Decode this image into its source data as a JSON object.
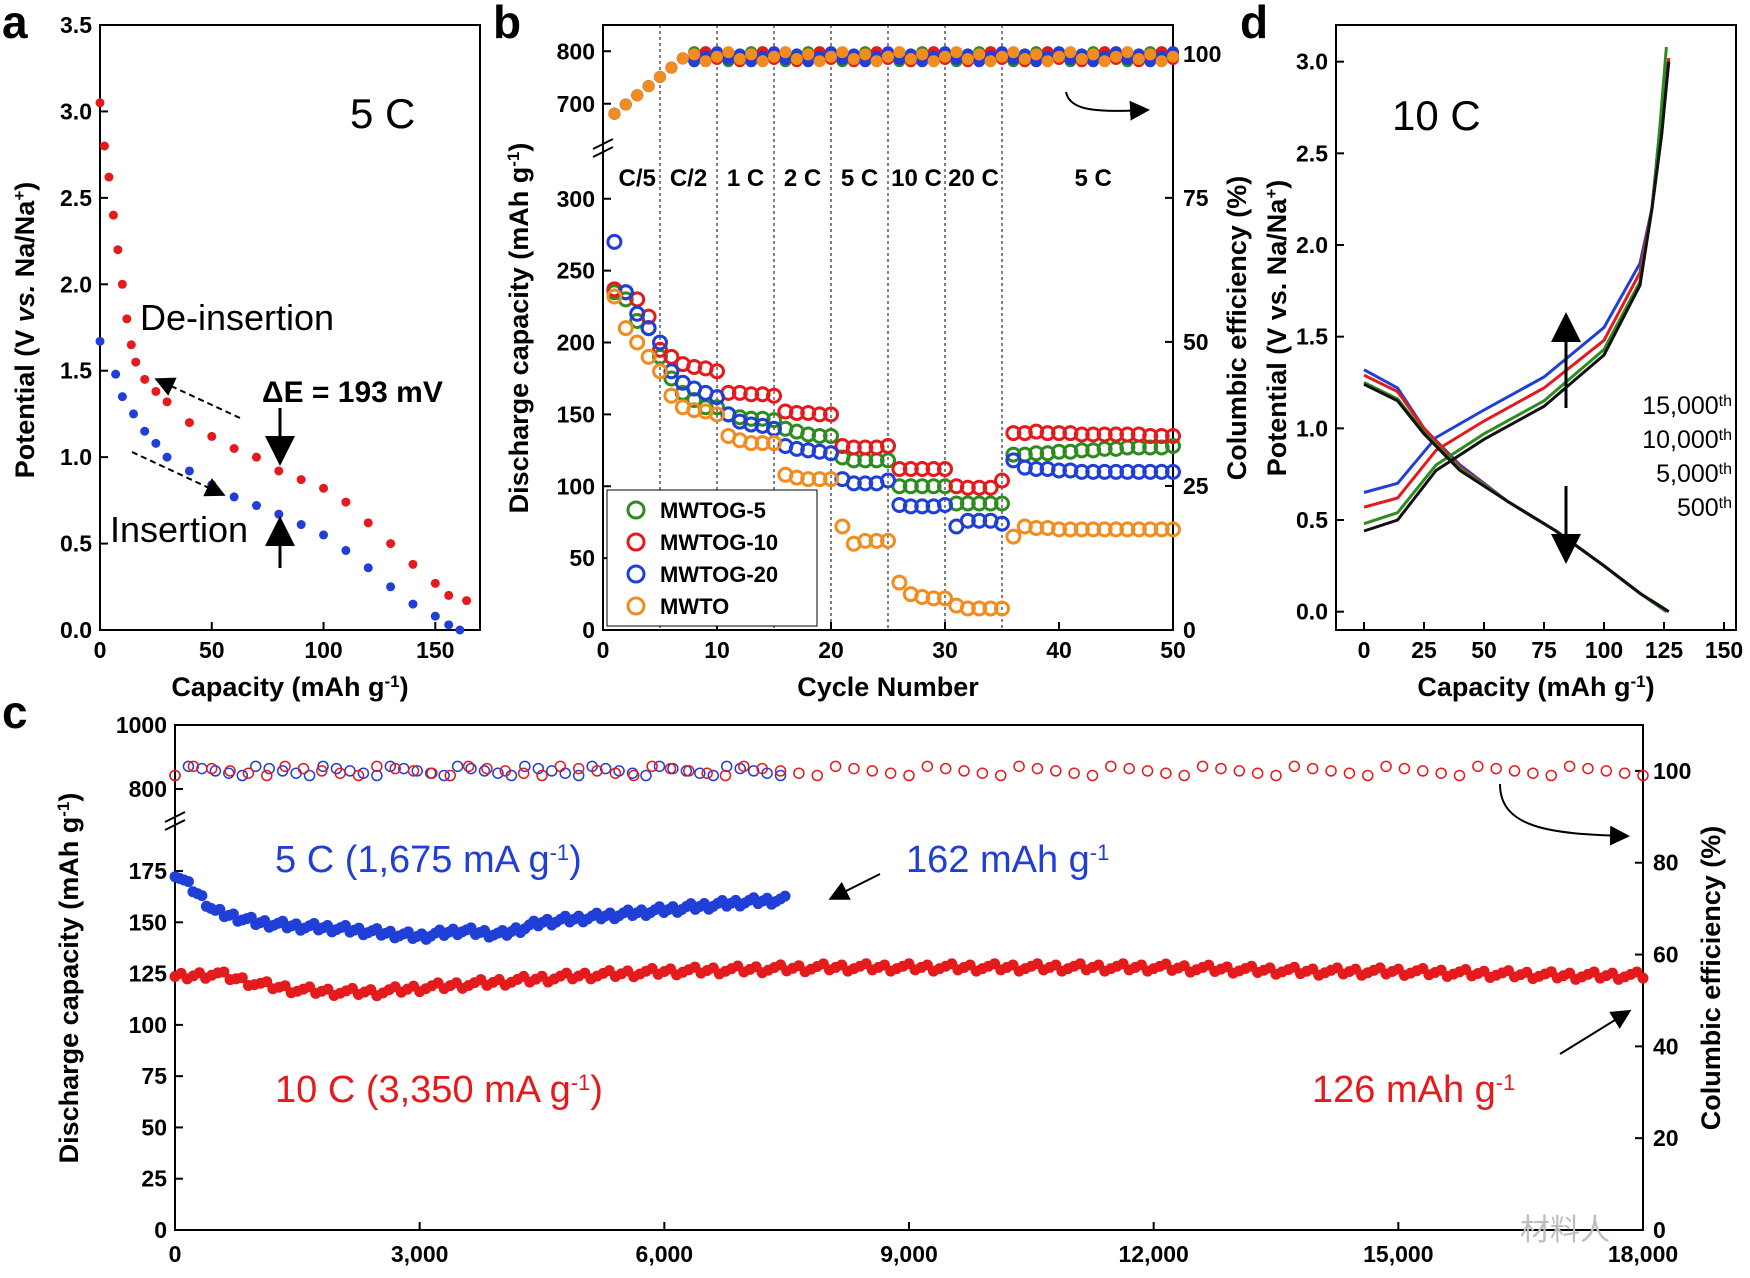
{
  "watermark": "材料人",
  "chart_data": [
    {
      "id": "a",
      "panel": "a",
      "type": "scatter",
      "xlabel": "Capacity (mAh g-1)",
      "ylabel": "Potential (V vs. Na/Na+)",
      "xlim": [
        0,
        170
      ],
      "ylim": [
        0,
        3.5
      ],
      "xticks": [
        "0",
        "50",
        "100",
        "150"
      ],
      "yticks": [
        "0.0",
        "0.5",
        "1.0",
        "1.5",
        "2.0",
        "2.5",
        "3.0",
        "3.5"
      ],
      "annotations": {
        "rate": "5 C",
        "deinsertion": "De-insertion",
        "insertion": "Insertion",
        "delta": "ΔE = 193 mV"
      },
      "series": [
        {
          "name": "De-insertion",
          "color": "#e41a1c",
          "x": [
            0,
            2,
            4,
            6,
            8,
            10,
            12,
            14,
            16,
            20,
            25,
            30,
            40,
            50,
            60,
            70,
            80,
            90,
            100,
            110,
            120,
            130,
            140,
            150,
            156,
            164
          ],
          "y": [
            3.05,
            2.8,
            2.62,
            2.4,
            2.2,
            2.0,
            1.8,
            1.65,
            1.55,
            1.45,
            1.38,
            1.32,
            1.2,
            1.12,
            1.05,
            1.0,
            0.92,
            0.87,
            0.82,
            0.74,
            0.62,
            0.5,
            0.38,
            0.27,
            0.2,
            0.17
          ]
        },
        {
          "name": "Insertion",
          "color": "#1f3fd6",
          "x": [
            0,
            7,
            10,
            15,
            20,
            25,
            30,
            40,
            50,
            60,
            70,
            80,
            90,
            100,
            110,
            120,
            130,
            140,
            150,
            156,
            161
          ],
          "y": [
            1.67,
            1.48,
            1.35,
            1.25,
            1.15,
            1.08,
            1.0,
            0.92,
            0.84,
            0.77,
            0.72,
            0.67,
            0.61,
            0.55,
            0.46,
            0.36,
            0.25,
            0.15,
            0.08,
            0.03,
            0.0
          ]
        }
      ]
    },
    {
      "id": "b",
      "panel": "b",
      "type": "scatter",
      "xlabel": "Cycle Number",
      "ylabel": "Discharge capacity (mAh g-1)",
      "y2label": "Columbic efficiency (%)",
      "xlim": [
        0,
        50
      ],
      "ylim_lower": [
        0,
        320
      ],
      "ylim_upper": [
        650,
        850
      ],
      "y2lim": [
        0,
        105
      ],
      "xticks": [
        "0",
        "10",
        "20",
        "30",
        "40",
        "50"
      ],
      "yticks": [
        "0",
        "50",
        "100",
        "150",
        "200",
        "250",
        "300",
        "700",
        "800"
      ],
      "y2ticks": [
        "0",
        "25",
        "50",
        "75",
        "100"
      ],
      "rate_labels": [
        "C/5",
        "C/2",
        "1 C",
        "2 C",
        "5 C",
        "10 C",
        "20 C",
        "5 C"
      ],
      "legend": [
        "MWTOG-5",
        "MWTOG-10",
        "MWTOG-20",
        "MWTO"
      ],
      "series": [
        {
          "name": "MWTOG-5",
          "color": "#2e8b1f",
          "capacity": [
            235,
            230,
            215,
            210,
            190,
            175,
            165,
            160,
            155,
            155,
            150,
            148,
            147,
            147,
            146,
            140,
            138,
            136,
            135,
            135,
            120,
            118,
            118,
            118,
            118,
            100,
            100,
            100,
            100,
            100,
            88,
            88,
            88,
            88,
            88,
            122,
            122,
            123,
            123,
            124,
            124,
            125,
            125,
            126,
            126,
            127,
            127,
            127,
            127,
            128
          ]
        },
        {
          "name": "MWTOG-10",
          "color": "#e41a1c",
          "capacity": [
            237,
            235,
            230,
            218,
            195,
            190,
            185,
            183,
            182,
            180,
            165,
            165,
            164,
            164,
            163,
            152,
            151,
            151,
            150,
            150,
            128,
            127,
            127,
            127,
            128,
            112,
            112,
            112,
            112,
            112,
            100,
            99,
            99,
            99,
            104,
            137,
            137,
            138,
            137,
            137,
            137,
            136,
            136,
            136,
            136,
            136,
            136,
            135,
            135,
            135
          ]
        },
        {
          "name": "MWTOG-20",
          "color": "#1f3fd6",
          "capacity": [
            270,
            235,
            220,
            210,
            200,
            180,
            172,
            168,
            165,
            162,
            150,
            145,
            143,
            142,
            140,
            128,
            126,
            125,
            124,
            123,
            105,
            102,
            102,
            102,
            104,
            87,
            86,
            86,
            86,
            87,
            72,
            76,
            76,
            76,
            74,
            118,
            113,
            112,
            112,
            111,
            111,
            110,
            110,
            110,
            110,
            110,
            110,
            110,
            110,
            110
          ]
        },
        {
          "name": "MWTO",
          "color": "#f28c1e",
          "capacity": [
            232,
            210,
            200,
            190,
            180,
            163,
            155,
            153,
            152,
            150,
            135,
            132,
            130,
            130,
            130,
            108,
            106,
            105,
            105,
            105,
            72,
            60,
            62,
            62,
            62,
            33,
            25,
            23,
            22,
            22,
            17,
            15,
            15,
            15,
            15,
            65,
            72,
            71,
            71,
            70,
            70,
            70,
            70,
            70,
            70,
            70,
            70,
            70,
            70,
            70
          ]
        }
      ]
    },
    {
      "id": "c",
      "panel": "c",
      "type": "scatter",
      "xlabel": "",
      "ylabel": "Discharge capacity (mAh g-1)",
      "y2label": "Columbic efficiency (%)",
      "xlim": [
        0,
        18000
      ],
      "ylim_lower": [
        0,
        195
      ],
      "ylim_upper": [
        750,
        1000
      ],
      "y2lim": [
        0,
        110
      ],
      "xticks": [
        "0",
        "3,000",
        "6,000",
        "9,000",
        "12,000",
        "15,000",
        "18,000"
      ],
      "yticks": [
        "0",
        "25",
        "50",
        "75",
        "100",
        "125",
        "150",
        "175",
        "800",
        "1000"
      ],
      "y2ticks": [
        "0",
        "20",
        "40",
        "60",
        "80",
        "100"
      ],
      "annotations": {
        "blue_rate": "5 C   (1,675 mA g-1)",
        "red_rate": "10 C  (3,350 mA g-1)",
        "blue_final": "162 mAh g-1",
        "red_final": "126 mAh g-1"
      },
      "series": [
        {
          "name": "5 C",
          "color": "#1f3fd6",
          "x": [
            0,
            250,
            500,
            1000,
            1500,
            2000,
            2500,
            3000,
            3500,
            4000,
            4500,
            5000,
            5500,
            6000,
            6500,
            7000,
            7500
          ],
          "y": [
            174,
            165,
            155,
            150,
            148,
            147,
            145,
            143,
            146,
            144,
            150,
            152,
            154,
            156,
            158,
            160,
            161
          ]
        },
        {
          "name": "10 C",
          "color": "#e41a1c",
          "x": [
            0,
            500,
            1000,
            1500,
            2000,
            2500,
            3000,
            4000,
            5000,
            6000,
            7000,
            8000,
            9000,
            10000,
            11000,
            12000,
            13000,
            14000,
            15000,
            16000,
            17000,
            18000
          ],
          "y": [
            123,
            125,
            120,
            117,
            116,
            116,
            118,
            121,
            124,
            126,
            127,
            128,
            128,
            128,
            128,
            128,
            127,
            126,
            126,
            125,
            124,
            124
          ]
        }
      ]
    },
    {
      "id": "d",
      "panel": "d",
      "type": "line",
      "xlabel": "Capacity (mAh g-1)",
      "ylabel": "Potential (V vs. Na/Na+)",
      "xlim": [
        0,
        150
      ],
      "ylim": [
        -0.1,
        3.2
      ],
      "xticks": [
        "0",
        "25",
        "50",
        "75",
        "100",
        "125",
        "150"
      ],
      "yticks": [
        "0.0",
        "0.5",
        "1.0",
        "1.5",
        "2.0",
        "2.5",
        "3.0"
      ],
      "annotations": {
        "rate": "10 C",
        "cycles": [
          "15,000th",
          "10,000th",
          "5,000th",
          "500th"
        ]
      },
      "series": [
        {
          "name": "15,000th",
          "color": "#1f3fd6",
          "charge_x": [
            0,
            14,
            30,
            50,
            75,
            100,
            115,
            120,
            123,
            126
          ],
          "charge_y": [
            0.65,
            0.7,
            0.95,
            1.1,
            1.28,
            1.55,
            1.9,
            2.2,
            2.6,
            3.0
          ],
          "discharge_x": [
            0,
            14,
            25,
            40,
            60,
            80,
            100,
            115,
            126
          ],
          "discharge_y": [
            1.32,
            1.22,
            1.0,
            0.8,
            0.6,
            0.44,
            0.25,
            0.1,
            0.0
          ]
        },
        {
          "name": "10,000th",
          "color": "#e41a1c",
          "charge_x": [
            0,
            14,
            30,
            50,
            75,
            100,
            115,
            120,
            124,
            127
          ],
          "charge_y": [
            0.57,
            0.62,
            0.88,
            1.04,
            1.22,
            1.48,
            1.85,
            2.2,
            2.6,
            3.02
          ],
          "discharge_x": [
            0,
            14,
            25,
            40,
            60,
            80,
            100,
            115,
            127
          ],
          "discharge_y": [
            1.29,
            1.2,
            1.0,
            0.79,
            0.6,
            0.44,
            0.25,
            0.1,
            0.0
          ]
        },
        {
          "name": "5,000th",
          "color": "#2e8b1f",
          "charge_x": [
            0,
            14,
            30,
            50,
            75,
            100,
            115,
            120,
            123,
            126
          ],
          "charge_y": [
            0.48,
            0.54,
            0.8,
            0.97,
            1.15,
            1.43,
            1.8,
            2.2,
            2.6,
            3.08
          ],
          "discharge_x": [
            0,
            14,
            25,
            40,
            60,
            80,
            100,
            115,
            126
          ],
          "discharge_y": [
            1.25,
            1.16,
            0.98,
            0.78,
            0.6,
            0.44,
            0.25,
            0.1,
            0.0
          ]
        },
        {
          "name": "500th",
          "color": "#111111",
          "charge_x": [
            0,
            14,
            30,
            50,
            75,
            100,
            115,
            120,
            124,
            127
          ],
          "charge_y": [
            0.44,
            0.5,
            0.77,
            0.94,
            1.12,
            1.4,
            1.78,
            2.2,
            2.6,
            3.0
          ],
          "discharge_x": [
            0,
            14,
            25,
            40,
            60,
            80,
            100,
            115,
            127
          ],
          "discharge_y": [
            1.24,
            1.15,
            0.97,
            0.77,
            0.6,
            0.44,
            0.25,
            0.1,
            0.0
          ]
        }
      ]
    }
  ]
}
